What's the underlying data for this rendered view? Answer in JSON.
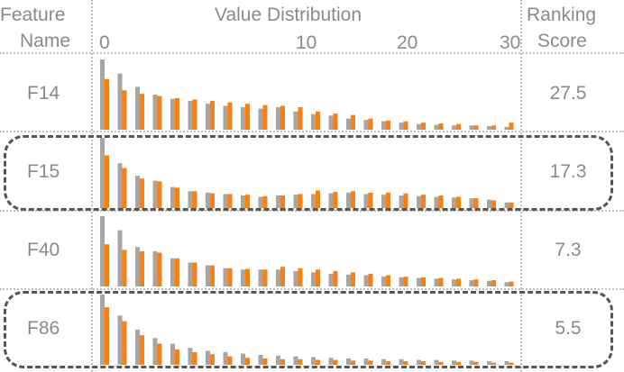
{
  "header": {
    "feature_line1": "Feature",
    "feature_line2": "Name",
    "distribution": "Value Distribution",
    "ranking_line1": "Ranking",
    "ranking_line2": "Score"
  },
  "colors": {
    "series_a": "#a6a6a6",
    "series_b": "#ff7f0e",
    "highlight": "#555555"
  },
  "chart_data": {
    "type": "bar",
    "title": "Value Distribution",
    "x_ticks": [
      "0",
      "10",
      "20",
      "30"
    ],
    "xlim": [
      0,
      30
    ],
    "bins": 24,
    "series": [
      {
        "color": "#a6a6a6"
      },
      {
        "color": "#ff7f0e"
      }
    ],
    "rows": [
      {
        "feature": "F14",
        "score": "27.5",
        "highlighted": false,
        "a": [
          1.0,
          0.8,
          0.61,
          0.5,
          0.44,
          0.41,
          0.37,
          0.34,
          0.32,
          0.3,
          0.32,
          0.26,
          0.22,
          0.2,
          0.16,
          0.14,
          0.12,
          0.1,
          0.08,
          0.07,
          0.06,
          0.06,
          0.05,
          0.04
        ],
        "b": [
          0.72,
          0.56,
          0.51,
          0.48,
          0.45,
          0.43,
          0.41,
          0.39,
          0.37,
          0.35,
          0.34,
          0.32,
          0.26,
          0.23,
          0.21,
          0.16,
          0.13,
          0.12,
          0.1,
          0.09,
          0.08,
          0.06,
          0.06,
          0.1
        ]
      },
      {
        "feature": "F15",
        "score": "17.3",
        "highlighted": true,
        "a": [
          1.0,
          0.64,
          0.46,
          0.39,
          0.3,
          0.24,
          0.22,
          0.2,
          0.18,
          0.16,
          0.18,
          0.19,
          0.2,
          0.21,
          0.22,
          0.2,
          0.19,
          0.18,
          0.17,
          0.16,
          0.15,
          0.14,
          0.12,
          0.08
        ],
        "b": [
          0.75,
          0.57,
          0.42,
          0.38,
          0.29,
          0.24,
          0.21,
          0.2,
          0.19,
          0.17,
          0.18,
          0.2,
          0.25,
          0.23,
          0.24,
          0.22,
          0.22,
          0.21,
          0.19,
          0.18,
          0.16,
          0.14,
          0.11,
          0.08
        ]
      },
      {
        "feature": "F40",
        "score": "7.3",
        "highlighted": false,
        "a": [
          1.0,
          0.8,
          0.56,
          0.5,
          0.4,
          0.34,
          0.3,
          0.26,
          0.24,
          0.24,
          0.24,
          0.22,
          0.2,
          0.18,
          0.17,
          0.16,
          0.14,
          0.13,
          0.12,
          0.11,
          0.1,
          0.09,
          0.08,
          0.06
        ],
        "b": [
          0.6,
          0.52,
          0.5,
          0.48,
          0.4,
          0.34,
          0.3,
          0.26,
          0.25,
          0.24,
          0.28,
          0.26,
          0.24,
          0.22,
          0.2,
          0.18,
          0.16,
          0.14,
          0.13,
          0.12,
          0.11,
          0.1,
          0.09,
          0.07
        ]
      },
      {
        "feature": "F86",
        "score": "5.5",
        "highlighted": true,
        "a": [
          1.0,
          0.7,
          0.5,
          0.38,
          0.3,
          0.24,
          0.2,
          0.18,
          0.16,
          0.14,
          0.13,
          0.12,
          0.11,
          0.1,
          0.09,
          0.09,
          0.08,
          0.08,
          0.07,
          0.07,
          0.06,
          0.06,
          0.05,
          0.05
        ],
        "b": [
          0.82,
          0.62,
          0.42,
          0.3,
          0.22,
          0.18,
          0.15,
          0.12,
          0.1,
          0.09,
          0.08,
          0.08,
          0.07,
          0.07,
          0.06,
          0.06,
          0.05,
          0.05,
          0.05,
          0.04,
          0.04,
          0.04,
          0.03,
          0.03
        ]
      }
    ]
  }
}
